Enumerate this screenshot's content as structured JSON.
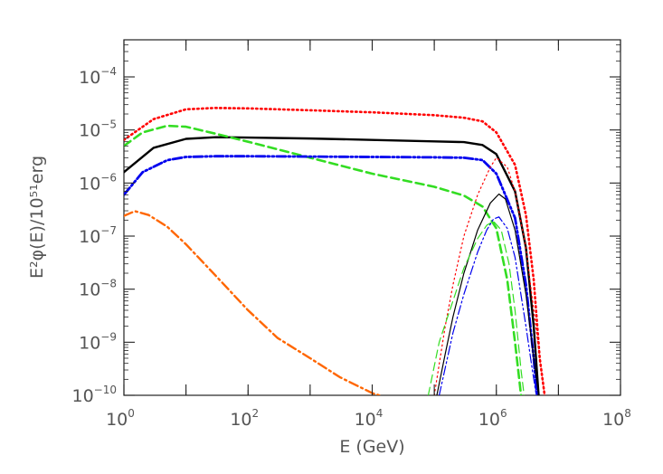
{
  "chart_data": {
    "type": "line",
    "xlabel": "E (GeV)",
    "ylabel": "E²φ(E)/10⁵¹erg",
    "x_scale": "log",
    "y_scale": "log",
    "xlim": [
      1,
      100000000
    ],
    "ylim": [
      1e-10,
      0.0005
    ],
    "x_ticks": [
      {
        "value": 1,
        "base": "10",
        "exp": "0"
      },
      {
        "value": 100,
        "base": "10",
        "exp": "2"
      },
      {
        "value": 10000,
        "base": "10",
        "exp": "4"
      },
      {
        "value": 1000000,
        "base": "10",
        "exp": "6"
      },
      {
        "value": 100000000,
        "base": "10",
        "exp": "8"
      }
    ],
    "y_ticks": [
      {
        "value": 1e-10,
        "base": "10",
        "exp": "−10"
      },
      {
        "value": 1e-09,
        "base": "10",
        "exp": "−9"
      },
      {
        "value": 1e-08,
        "base": "10",
        "exp": "−8"
      },
      {
        "value": 1e-07,
        "base": "10",
        "exp": "−7"
      },
      {
        "value": 1e-06,
        "base": "10",
        "exp": "−6"
      },
      {
        "value": 1e-05,
        "base": "10",
        "exp": "−5"
      },
      {
        "value": 0.0001,
        "base": "10",
        "exp": "−4"
      }
    ],
    "grid": false,
    "legend": "none",
    "series": [
      {
        "color": "#ff0000",
        "dash": "dotted",
        "width": 2.6,
        "x": [
          1,
          3,
          10,
          30,
          100,
          1000,
          10000,
          100000,
          300000,
          600000,
          1000000,
          2000000,
          3000000,
          4000000,
          5000000,
          6000000
        ],
        "y": [
          6.5e-06,
          1.6e-05,
          2.45e-05,
          2.6e-05,
          2.55e-05,
          2.35e-05,
          2.15e-05,
          1.9e-05,
          1.7e-05,
          1.45e-05,
          9e-06,
          2.2e-06,
          2.5e-07,
          1.5e-08,
          5e-10,
          1e-10
        ]
      },
      {
        "color": "#000000",
        "dash": "solid",
        "width": 2.4,
        "x": [
          1,
          3,
          10,
          30,
          100,
          1000,
          10000,
          100000,
          300000,
          600000,
          1000000,
          2000000,
          3000000,
          4000000,
          4800000
        ],
        "y": [
          1.6e-06,
          4.6e-06,
          6.8e-06,
          7.3e-06,
          7.2e-06,
          6.9e-06,
          6.5e-06,
          6.1e-06,
          5.9e-06,
          5.2e-06,
          3.5e-06,
          7e-07,
          6e-08,
          2e-09,
          1e-10
        ]
      },
      {
        "color": "#33dd22",
        "dash": "dashed",
        "width": 2.6,
        "x": [
          1,
          2,
          5,
          10,
          30,
          100,
          1000,
          10000,
          100000,
          300000,
          600000,
          1000000,
          1500000,
          2000000,
          2500000
        ],
        "y": [
          5e-06,
          9e-06,
          1.2e-05,
          1.15e-05,
          8.5e-06,
          6e-06,
          3e-06,
          1.5e-06,
          8.5e-07,
          5.8e-07,
          3.6e-07,
          1.4e-07,
          1.5e-08,
          1e-09,
          1e-10
        ]
      },
      {
        "color": "#0000ee",
        "dash": "dashdotdot",
        "width": 2.8,
        "x": [
          1,
          2,
          5,
          10,
          30,
          100,
          1000,
          10000,
          100000,
          300000,
          600000,
          1000000,
          2000000,
          3000000,
          4000000,
          4500000
        ],
        "y": [
          6e-07,
          1.6e-06,
          2.7e-06,
          3.1e-06,
          3.2e-06,
          3.2e-06,
          3.15e-06,
          3.1e-06,
          3.05e-06,
          3e-06,
          2.7e-06,
          1.5e-06,
          2.2e-07,
          1.2e-08,
          5e-10,
          1e-10
        ]
      },
      {
        "color": "#ff6600",
        "dash": "dashdot",
        "width": 2.4,
        "x": [
          1,
          1.5,
          2.5,
          5,
          10,
          30,
          100,
          300,
          1000,
          3000,
          10000,
          13000
        ],
        "y": [
          2.4e-07,
          2.95e-07,
          2.5e-07,
          1.5e-07,
          7e-08,
          1.8e-08,
          4e-09,
          1.2e-09,
          5e-10,
          2.2e-10,
          1.1e-10,
          1e-10
        ]
      },
      {
        "color": "#ff0000",
        "dash": "dotted",
        "width": 1.2,
        "x": [
          100000,
          150000,
          200000,
          300000,
          500000,
          800000,
          1000000,
          1500000,
          2000000,
          3000000,
          4000000,
          5000000,
          6000000
        ],
        "y": [
          1e-10,
          2e-09,
          1.2e-08,
          1e-07,
          6e-07,
          2e-06,
          3e-06,
          2e-06,
          7e-07,
          6e-08,
          4e-09,
          5e-10,
          1e-10
        ]
      },
      {
        "color": "#000000",
        "dash": "solid",
        "width": 1.2,
        "x": [
          110000,
          150000,
          200000,
          300000,
          500000,
          800000,
          1100000,
          1400000,
          2000000,
          3000000,
          4000000,
          4800000
        ],
        "y": [
          1e-10,
          6e-10,
          3e-09,
          2e-08,
          1.3e-07,
          4.2e-07,
          6.2e-07,
          5e-07,
          1.3e-07,
          8e-09,
          5e-10,
          1e-10
        ]
      },
      {
        "color": "#33dd22",
        "dash": "dashed",
        "width": 1.2,
        "x": [
          80000,
          120000,
          200000,
          300000,
          500000,
          700000,
          900000,
          1200000,
          1600000,
          2000000,
          2500000,
          2800000
        ],
        "y": [
          1e-10,
          1e-09,
          6e-09,
          2.5e-08,
          9e-08,
          1.6e-07,
          1.9e-07,
          1.3e-07,
          3e-08,
          4e-09,
          3e-10,
          1e-10
        ]
      },
      {
        "color": "#0000ee",
        "dash": "dashdotdot",
        "width": 1.2,
        "x": [
          120000,
          200000,
          300000,
          500000,
          700000,
          900000,
          1100000,
          1500000,
          2000000,
          3000000,
          3800000,
          4400000
        ],
        "y": [
          1e-10,
          1.5e-09,
          8e-09,
          5e-08,
          1.3e-07,
          2.1e-07,
          2.3e-07,
          1.4e-07,
          4e-08,
          2e-09,
          3e-10,
          1e-10
        ]
      }
    ]
  }
}
